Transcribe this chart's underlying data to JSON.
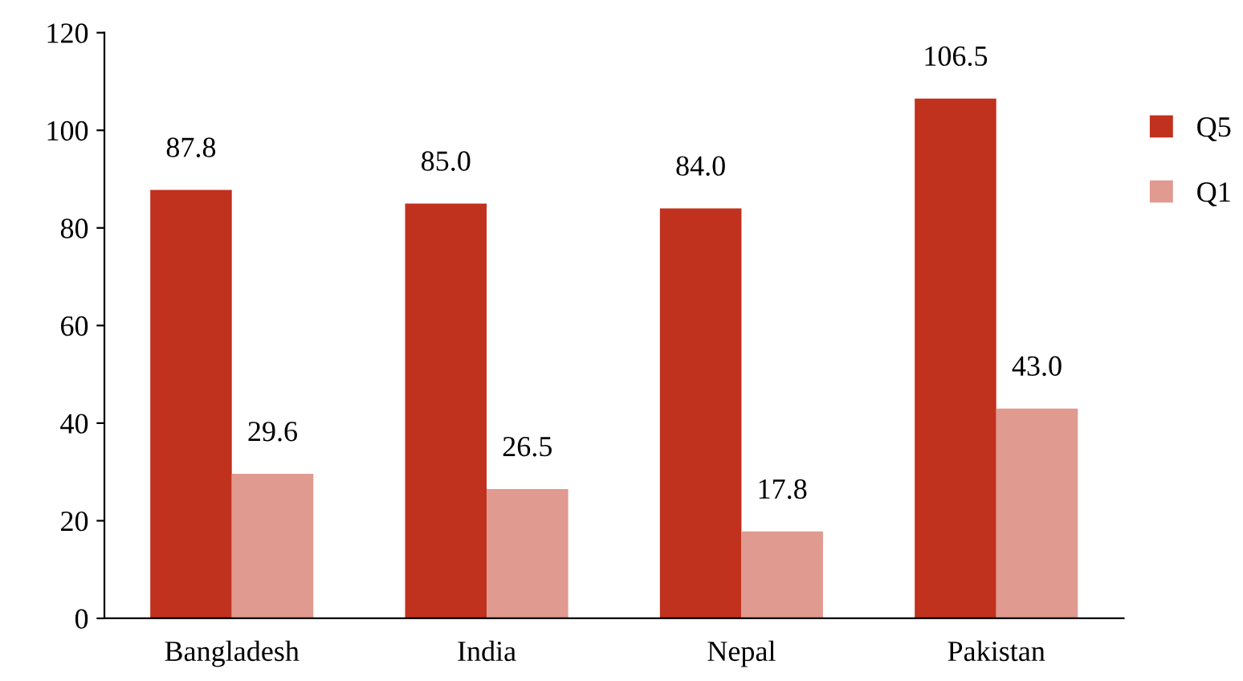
{
  "chart_data": {
    "type": "bar",
    "categories": [
      "Bangladesh",
      "India",
      "Nepal",
      "Pakistan"
    ],
    "series": [
      {
        "name": "Q5",
        "color": "#c0311e",
        "values": [
          87.8,
          85.0,
          84.0,
          106.5
        ],
        "value_labels": [
          "87.8",
          "85.0",
          "84.0",
          "106.5"
        ]
      },
      {
        "name": "Q1",
        "color": "#e09a90",
        "values": [
          29.6,
          26.5,
          17.8,
          43.0
        ],
        "value_labels": [
          "29.6",
          "26.5",
          "17.8",
          "43.0"
        ]
      }
    ],
    "ylim": [
      0,
      120
    ],
    "yticks": [
      0,
      20,
      40,
      60,
      80,
      100,
      120
    ],
    "grid": false,
    "legend": "right"
  }
}
